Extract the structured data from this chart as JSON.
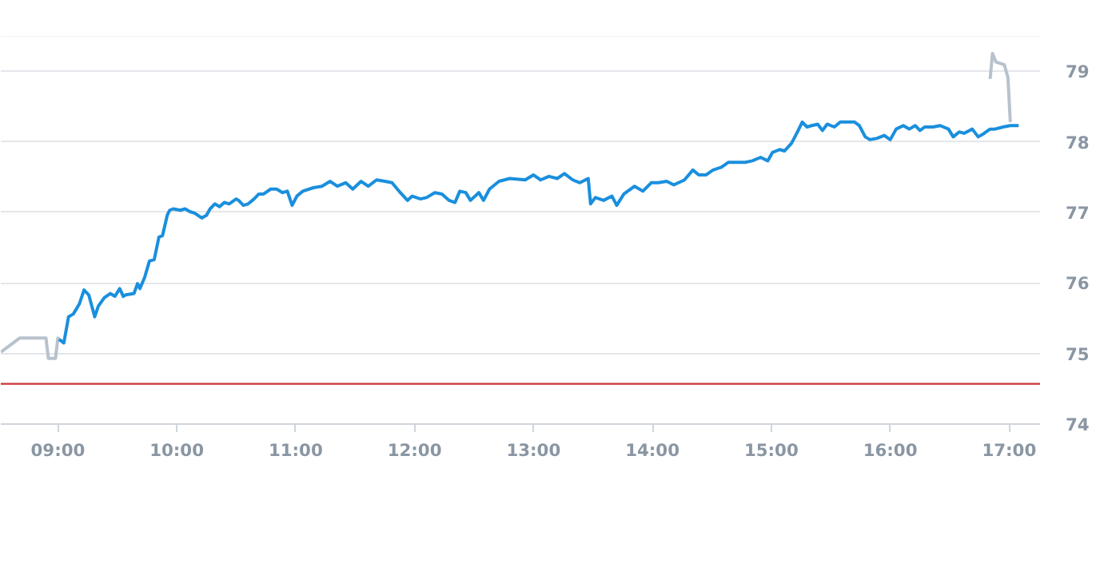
{
  "chart_data": {
    "type": "line",
    "xlim": [
      8.52,
      17.26
    ],
    "ylim": [
      74,
      79.5
    ],
    "xticks": [
      {
        "value": 9,
        "label": "09:00"
      },
      {
        "value": 10,
        "label": "10:00"
      },
      {
        "value": 11,
        "label": "11:00"
      },
      {
        "value": 12,
        "label": "12:00"
      },
      {
        "value": 13,
        "label": "13:00"
      },
      {
        "value": 14,
        "label": "14:00"
      },
      {
        "value": 15,
        "label": "15:00"
      },
      {
        "value": 16,
        "label": "16:00"
      },
      {
        "value": 17,
        "label": "17:00"
      }
    ],
    "yticks": [
      74,
      75,
      76,
      77,
      78,
      79
    ],
    "grid": "y",
    "line_style": "solid",
    "ref_lines": [
      {
        "axis": "y",
        "value": 74.57,
        "color": "#cc3333"
      }
    ],
    "series": [
      {
        "color": "#b8c2cc",
        "x": [
          8.52,
          8.68,
          8.9,
          8.92,
          8.98,
          9.0,
          9.01
        ],
        "values": [
          75.02,
          75.22,
          75.22,
          74.93,
          74.93,
          75.22,
          75.2
        ]
      },
      {
        "color": "#b8c2cc",
        "x": [
          16.84,
          16.86,
          16.89,
          16.96,
          16.99,
          17.01
        ],
        "values": [
          78.89,
          79.25,
          79.13,
          79.09,
          78.91,
          78.28
        ]
      },
      {
        "color": "#1a8fdd",
        "x": [
          9.01,
          9.05,
          9.09,
          9.13,
          9.18,
          9.22,
          9.26,
          9.31,
          9.34,
          9.39,
          9.44,
          9.48,
          9.52,
          9.55,
          9.57,
          9.64,
          9.67,
          9.69,
          9.73,
          9.77,
          9.81,
          9.85,
          9.88,
          9.92,
          9.94,
          9.97,
          10.03,
          10.07,
          10.11,
          10.15,
          10.21,
          10.25,
          10.28,
          10.32,
          10.36,
          10.4,
          10.44,
          10.5,
          10.52,
          10.56,
          10.6,
          10.65,
          10.69,
          10.73,
          10.79,
          10.84,
          10.89,
          10.93,
          10.97,
          11.01,
          11.06,
          11.15,
          11.22,
          11.29,
          11.35,
          11.42,
          11.48,
          11.55,
          11.61,
          11.68,
          11.75,
          11.81,
          11.88,
          11.94,
          11.98,
          12.05,
          12.1,
          12.17,
          12.23,
          12.29,
          12.34,
          12.38,
          12.43,
          12.47,
          12.54,
          12.58,
          12.63,
          12.71,
          12.8,
          12.93,
          13.0,
          13.06,
          13.13,
          13.2,
          13.26,
          13.33,
          13.39,
          13.46,
          13.48,
          13.52,
          13.59,
          13.66,
          13.7,
          13.76,
          13.85,
          13.92,
          13.99,
          14.05,
          14.12,
          14.18,
          14.27,
          14.34,
          14.39,
          14.45,
          14.51,
          14.58,
          14.64,
          14.71,
          14.78,
          14.84,
          14.91,
          14.97,
          15.01,
          15.07,
          15.11,
          15.17,
          15.22,
          15.26,
          15.3,
          15.34,
          15.39,
          15.43,
          15.47,
          15.53,
          15.58,
          15.63,
          15.7,
          15.74,
          15.79,
          15.83,
          15.89,
          15.95,
          16.0,
          16.05,
          16.11,
          16.16,
          16.21,
          16.25,
          16.29,
          16.36,
          16.42,
          16.49,
          16.53,
          16.58,
          16.62,
          16.69,
          16.74,
          16.79,
          16.84,
          16.88,
          16.95,
          17.01,
          17.08
        ],
        "values": [
          75.2,
          75.15,
          75.52,
          75.56,
          75.7,
          75.9,
          75.83,
          75.52,
          75.67,
          75.79,
          75.85,
          75.81,
          75.92,
          75.81,
          75.83,
          75.85,
          75.99,
          75.92,
          76.08,
          76.31,
          76.33,
          76.65,
          76.67,
          76.96,
          77.03,
          77.05,
          77.03,
          77.05,
          77.01,
          76.99,
          76.92,
          76.96,
          77.05,
          77.12,
          77.08,
          77.14,
          77.12,
          77.19,
          77.17,
          77.1,
          77.12,
          77.19,
          77.26,
          77.26,
          77.33,
          77.33,
          77.28,
          77.3,
          77.1,
          77.23,
          77.3,
          77.35,
          77.37,
          77.44,
          77.37,
          77.42,
          77.33,
          77.44,
          77.37,
          77.46,
          77.44,
          77.42,
          77.28,
          77.17,
          77.23,
          77.19,
          77.21,
          77.28,
          77.26,
          77.17,
          77.14,
          77.3,
          77.28,
          77.17,
          77.28,
          77.17,
          77.33,
          77.44,
          77.48,
          77.46,
          77.53,
          77.46,
          77.51,
          77.48,
          77.55,
          77.46,
          77.42,
          77.48,
          77.12,
          77.21,
          77.17,
          77.23,
          77.1,
          77.26,
          77.37,
          77.3,
          77.42,
          77.42,
          77.44,
          77.39,
          77.46,
          77.6,
          77.53,
          77.53,
          77.6,
          77.64,
          77.71,
          77.71,
          77.71,
          77.73,
          77.78,
          77.73,
          77.85,
          77.89,
          77.87,
          77.98,
          78.14,
          78.28,
          78.21,
          78.23,
          78.25,
          78.16,
          78.25,
          78.21,
          78.28,
          78.28,
          78.28,
          78.23,
          78.07,
          78.03,
          78.05,
          78.09,
          78.03,
          78.18,
          78.23,
          78.18,
          78.23,
          78.16,
          78.21,
          78.21,
          78.23,
          78.18,
          78.07,
          78.14,
          78.12,
          78.18,
          78.07,
          78.12,
          78.18,
          78.18,
          78.21,
          78.23,
          78.23
        ]
      }
    ]
  }
}
